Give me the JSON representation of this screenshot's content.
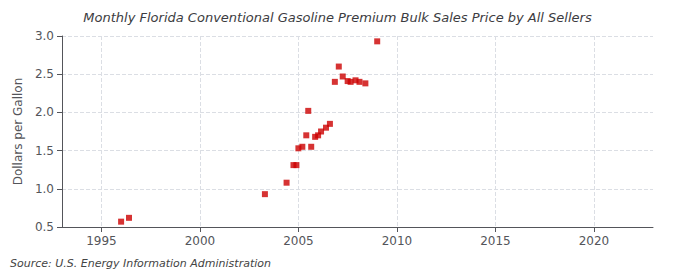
{
  "chart_data": {
    "type": "scatter",
    "title": "Monthly Florida Conventional Gasoline Premium Bulk Sales Price by All Sellers",
    "ylabel": "Dollars per Gallon",
    "annotations": [
      "Source: U.S. Energy Information Administration"
    ],
    "color": "#cc0000",
    "marker": "square",
    "grid": true,
    "xlim": [
      1993.0,
      2023.0
    ],
    "ylim": [
      0.5,
      3.0
    ],
    "xticks": [
      1995,
      2000,
      2005,
      2010,
      2015,
      2020
    ],
    "yticks": [
      0.5,
      {
        "value": 1.0,
        "label": "1.0"
      },
      1.5,
      {
        "value": 2.0,
        "label": "2.0"
      },
      2.5,
      {
        "value": 3.0,
        "label": "3.0"
      }
    ],
    "x": [
      1996.0,
      1996.4,
      2003.3,
      2004.4,
      2004.75,
      2004.9,
      2005.0,
      2005.2,
      2005.4,
      2005.5,
      2005.65,
      2005.85,
      2006.0,
      2006.15,
      2006.4,
      2006.6,
      2006.85,
      2007.05,
      2007.25,
      2007.5,
      2007.65,
      2007.9,
      2008.1,
      2008.4,
      2009.0
    ],
    "values": [
      0.57,
      0.62,
      0.93,
      1.08,
      1.31,
      1.31,
      1.53,
      1.55,
      1.7,
      2.02,
      1.55,
      1.68,
      1.7,
      1.75,
      1.8,
      1.85,
      2.4,
      2.6,
      2.47,
      2.41,
      2.4,
      2.42,
      2.4,
      2.38,
      2.93
    ]
  }
}
